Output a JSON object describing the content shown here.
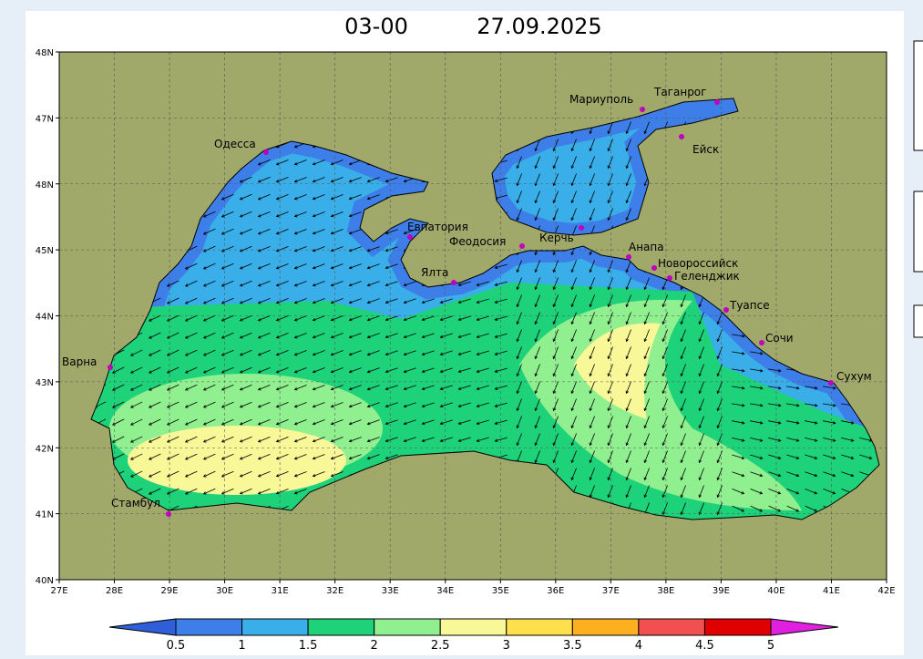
{
  "title": {
    "time": "03-00",
    "date": "27.09.2025"
  },
  "lat_labels": [
    "40N",
    "41N",
    "42N",
    "43N",
    "44N",
    "45N",
    "48N",
    "47N",
    "48N"
  ],
  "lon_labels": [
    "27E",
    "28E",
    "29E",
    "30E",
    "31E",
    "32E",
    "33E",
    "34E",
    "35E",
    "36E",
    "37E",
    "38E",
    "39E",
    "40E",
    "41E",
    "42E"
  ],
  "cities": [
    "Одесса",
    "Мариуполь",
    "Таганрог",
    "Ейск",
    "Евпатория",
    "Феодосия",
    "Керчь",
    "Анапа",
    "Новороссийск",
    "Геленджик",
    "Ялта",
    "Туапсе",
    "Сочи",
    "Сухум",
    "Варна",
    "Стамбул"
  ],
  "colorbar": {
    "ticks": [
      0.5,
      1,
      1.5,
      2,
      2.5,
      3,
      3.5,
      4,
      4.5,
      5
    ],
    "under_color": "#2f5fd8",
    "over_color": "#e020e0",
    "colors": [
      "#3d7ee8",
      "#3aaee8",
      "#1ed27a",
      "#90f090",
      "#f8f898",
      "#fde04c",
      "#fcb020",
      "#f25050",
      "#e00000"
    ]
  }
}
